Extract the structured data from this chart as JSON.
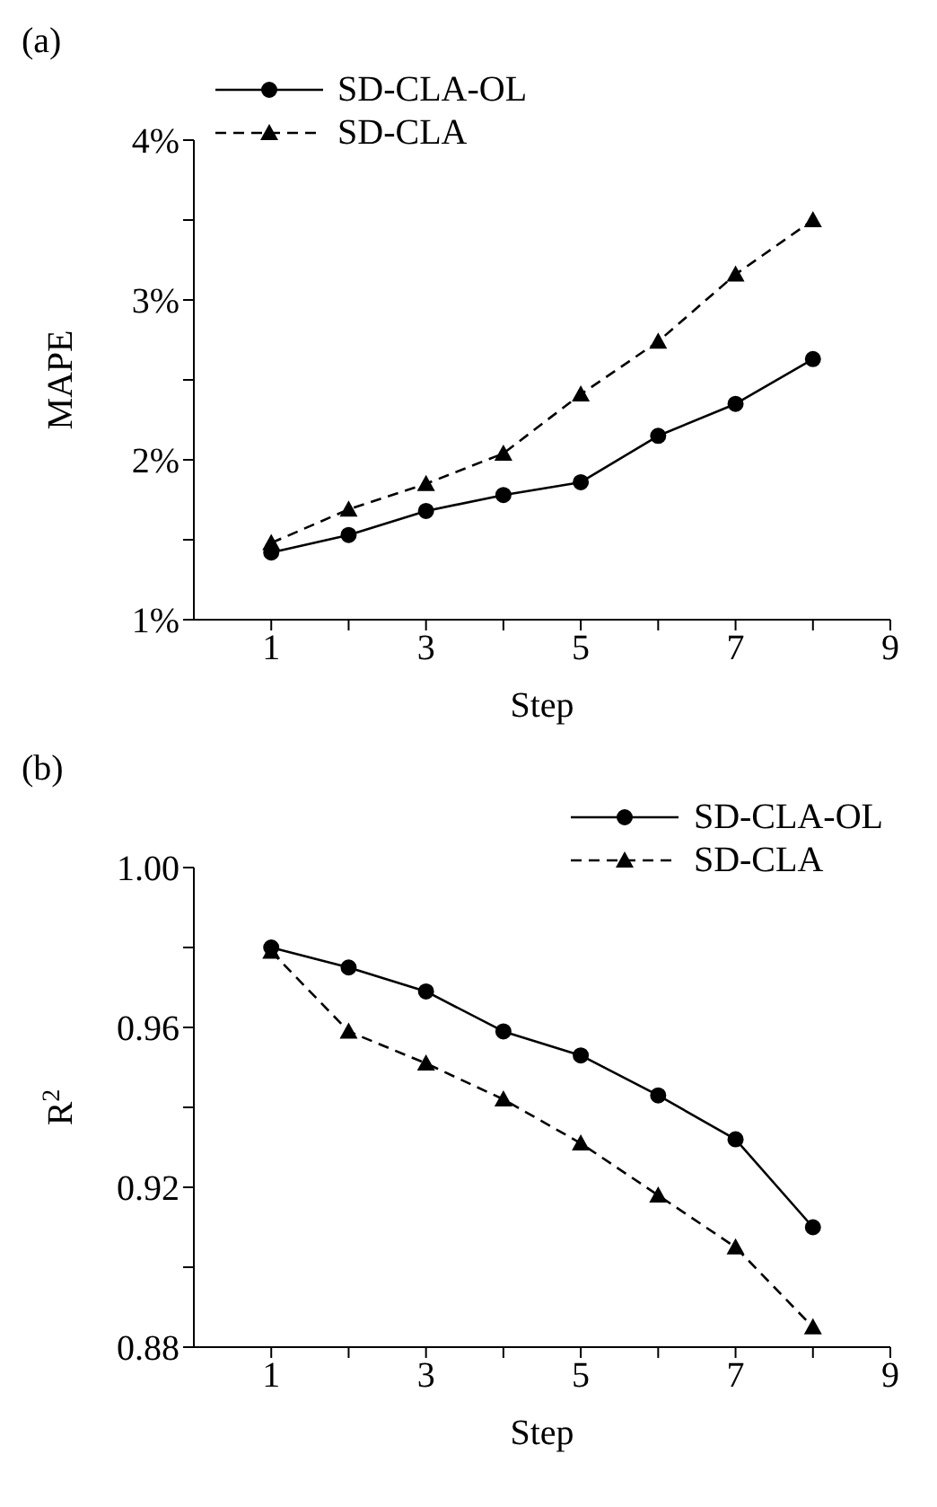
{
  "chart_data": [
    {
      "type": "line",
      "title": "(a)",
      "xlabel": "Step",
      "ylabel": "MAPE",
      "x": [
        1,
        2,
        3,
        4,
        5,
        6,
        7,
        8
      ],
      "xlim": [
        0,
        9
      ],
      "xticks": [
        1,
        {
          "value": 2,
          "label": null
        },
        3,
        {
          "value": 4,
          "label": null
        },
        5,
        {
          "value": 6,
          "label": null
        },
        7,
        {
          "value": 8,
          "label": null
        },
        9
      ],
      "ylim": [
        1,
        4
      ],
      "yticks": [
        {
          "value": 1,
          "label": "1%"
        },
        {
          "value": 1.5,
          "label": null
        },
        {
          "value": 2,
          "label": "2%"
        },
        {
          "value": 2.5,
          "label": null
        },
        {
          "value": 3,
          "label": "3%"
        },
        {
          "value": 3.5,
          "label": null
        },
        {
          "value": 4,
          "label": "4%"
        }
      ],
      "grid": false,
      "legend": "top left",
      "series": [
        {
          "name": "SD-CLA-OL",
          "color": "#000000",
          "marker": "circle",
          "line_style": "solid",
          "values": [
            1.42,
            1.53,
            1.68,
            1.78,
            1.86,
            2.15,
            2.35,
            2.63
          ]
        },
        {
          "name": "SD-CLA",
          "color": "#000000",
          "marker": "triangle",
          "line_style": "dashed",
          "values": [
            1.48,
            1.69,
            1.85,
            2.04,
            2.41,
            2.74,
            3.16,
            3.5
          ]
        }
      ]
    },
    {
      "type": "line",
      "title": "(b)",
      "xlabel": "Step",
      "ylabel": "R$^{2}$",
      "x": [
        1,
        2,
        3,
        4,
        5,
        6,
        7,
        8
      ],
      "xlim": [
        0,
        9
      ],
      "xticks": [
        1,
        {
          "value": 2,
          "label": null
        },
        3,
        {
          "value": 4,
          "label": null
        },
        5,
        {
          "value": 6,
          "label": null
        },
        7,
        {
          "value": 8,
          "label": null
        },
        9
      ],
      "ylim": [
        0.88,
        1
      ],
      "yticks": [
        {
          "value": 0.88,
          "label": "0.88"
        },
        {
          "value": 0.9,
          "label": null
        },
        {
          "value": 0.92,
          "label": "0.92"
        },
        {
          "value": 0.94,
          "label": null
        },
        {
          "value": 0.96,
          "label": "0.96"
        },
        {
          "value": 0.98,
          "label": null
        },
        {
          "value": 1,
          "label": "1.00"
        }
      ],
      "grid": false,
      "legend": "top right",
      "series": [
        {
          "name": "SD-CLA-OL",
          "color": "#000000",
          "marker": "circle",
          "line_style": "solid",
          "values": [
            0.98,
            0.975,
            0.969,
            0.959,
            0.953,
            0.943,
            0.932,
            0.91
          ]
        },
        {
          "name": "SD-CLA",
          "color": "#000000",
          "marker": "triangle",
          "line_style": "dashed",
          "values": [
            0.979,
            0.959,
            0.951,
            0.942,
            0.931,
            0.918,
            0.905,
            0.885
          ]
        }
      ]
    }
  ]
}
